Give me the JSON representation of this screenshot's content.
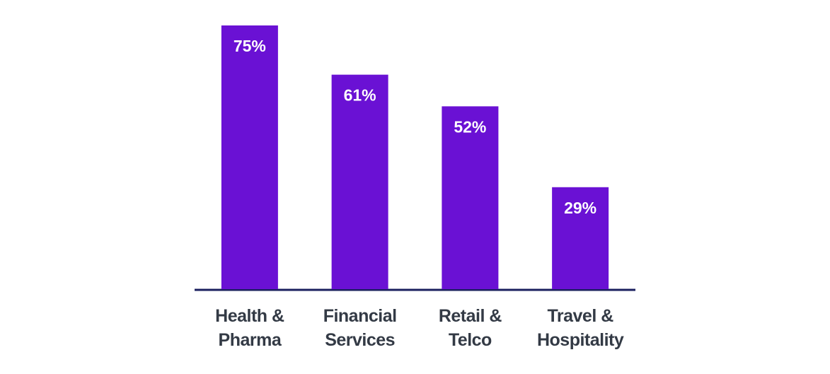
{
  "chart_data": {
    "type": "bar",
    "categories": [
      "Health & Pharma",
      "Financial Services",
      "Retail & Telco",
      "Travel & Hospitality"
    ],
    "values": [
      75,
      61,
      52,
      29
    ],
    "value_labels": [
      "75%",
      "61%",
      "52%",
      "29%"
    ],
    "color": "#6a11d4",
    "ylim": [
      0,
      75
    ]
  }
}
